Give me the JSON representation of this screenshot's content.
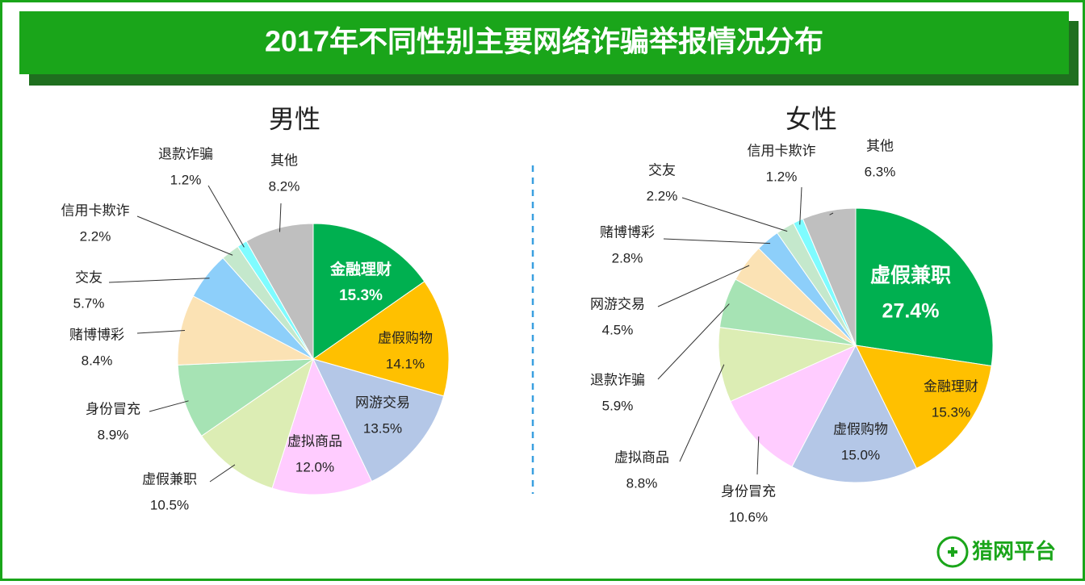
{
  "title": "2017年不同性别主要网络诈骗举报情况分布",
  "logo": "猎网平台",
  "chart_data": [
    {
      "type": "pie",
      "title": "男性",
      "categories": [
        "金融理财",
        "虚假购物",
        "网游交易",
        "虚拟商品",
        "虚假兼职",
        "身份冒充",
        "赌博博彩",
        "交友",
        "信用卡欺诈",
        "退款诈骗",
        "其他"
      ],
      "values": [
        15.3,
        14.1,
        13.5,
        12.0,
        10.5,
        8.9,
        8.4,
        5.7,
        2.2,
        1.2,
        8.2
      ],
      "value_labels": [
        "15.3%",
        "14.1%",
        "13.5%",
        "12.0%",
        "10.5%",
        "8.9%",
        "8.4%",
        "5.7%",
        "2.2%",
        "1.2%",
        "8.2%"
      ],
      "colors": [
        "#00b050",
        "#ffc000",
        "#b4c7e7",
        "#ffccff",
        "#dcedb4",
        "#a6e3b4",
        "#fbe2b4",
        "#8dcffa",
        "#c4e8cc",
        "#7ffcff",
        "#bfbfbf"
      ]
    },
    {
      "type": "pie",
      "title": "女性",
      "categories": [
        "虚假兼职",
        "金融理财",
        "虚假购物",
        "身份冒充",
        "虚拟商品",
        "退款诈骗",
        "网游交易",
        "赌博博彩",
        "交友",
        "信用卡欺诈",
        "其他"
      ],
      "values": [
        27.4,
        15.3,
        15.0,
        10.6,
        8.8,
        5.9,
        4.5,
        2.8,
        2.2,
        1.2,
        6.3
      ],
      "value_labels": [
        "27.4%",
        "15.3%",
        "15.0%",
        "10.6%",
        "8.8%",
        "5.9%",
        "4.5%",
        "2.8%",
        "2.2%",
        "1.2%",
        "6.3%"
      ],
      "colors": [
        "#00b050",
        "#ffc000",
        "#b4c7e7",
        "#ffccff",
        "#dcedb4",
        "#a6e3b4",
        "#fbe2b4",
        "#8dcffa",
        "#c4e8cc",
        "#7ffcff",
        "#bfbfbf"
      ]
    }
  ]
}
